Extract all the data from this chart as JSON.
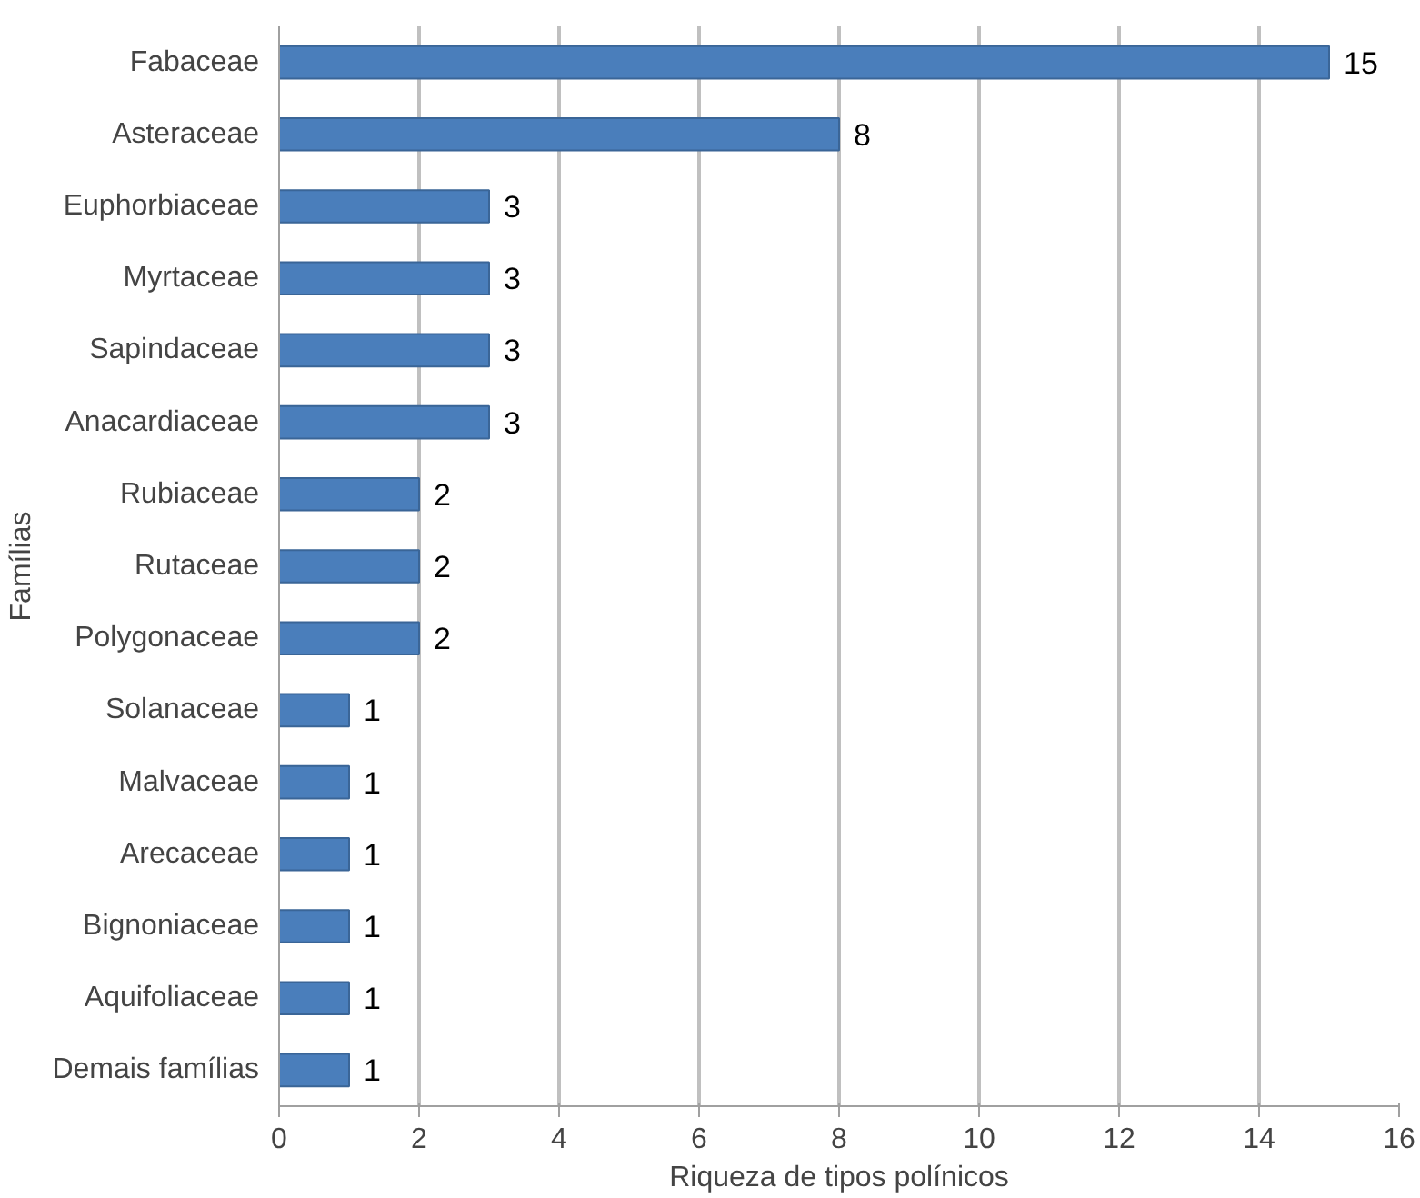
{
  "chart_data": {
    "type": "bar",
    "orientation": "horizontal",
    "xlabel": "Riqueza de tipos polínicos",
    "ylabel": "Famílias",
    "categories": [
      "Fabaceae",
      "Asteraceae",
      "Euphorbiaceae",
      "Myrtaceae",
      "Sapindaceae",
      "Anacardiaceae",
      "Rubiaceae",
      "Rutaceae",
      "Polygonaceae",
      "Solanaceae",
      "Malvaceae",
      "Arecaceae",
      "Bignoniaceae",
      "Aquifoliaceae",
      "Demais famílias"
    ],
    "values": [
      15,
      8,
      3,
      3,
      3,
      3,
      2,
      2,
      2,
      1,
      1,
      1,
      1,
      1,
      1
    ],
    "color": "#4a7ebb",
    "xlim": [
      0,
      16
    ],
    "xticks": [
      0,
      2,
      4,
      6,
      8,
      10,
      12,
      14,
      16
    ],
    "grid": "x",
    "data_labels": true
  }
}
